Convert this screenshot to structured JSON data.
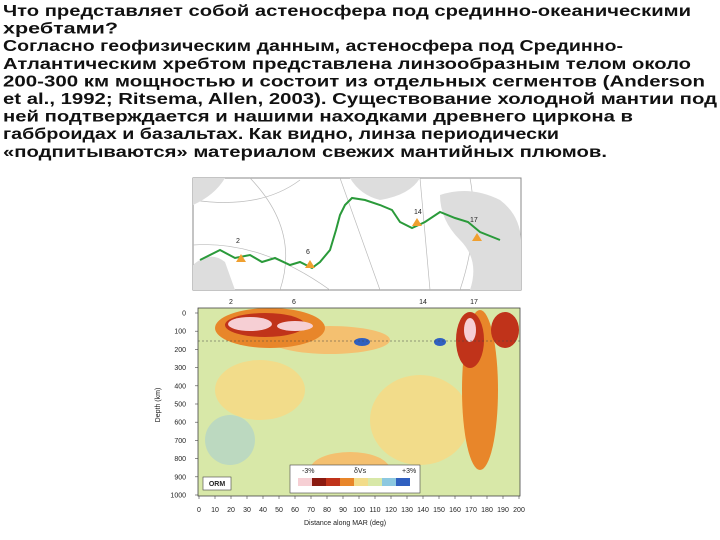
{
  "text": {
    "lines": [
      "Что представляет собой астеносфера под срединно-океаническими",
      "хребтами?",
      "Согласно геофизическим данным, астеносфера под Срединно-",
      "Атлантическим хребтом представлена линзообразным телом около",
      "200-300 км мощностью и состоит из отдельных сегментов (Anderson",
      "et al., 1992; Ritsema, Allen, 2003). Существование холодной мантии под",
      "ней подтверждается и нашими находками древнего циркона в",
      "габброидах и базальтах. Как видно, линза периодически",
      "«подпитываются» материалом свежих мантийных плюмов."
    ]
  },
  "figure": {
    "map": {
      "labels": [
        "2",
        "6",
        "14",
        "17"
      ]
    },
    "section": {
      "top_labels": [
        "2",
        "6",
        "14",
        "17"
      ],
      "y_ticks": [
        "0",
        "100",
        "200",
        "300",
        "400",
        "500",
        "600",
        "700",
        "800",
        "900",
        "1000"
      ],
      "x_ticks": [
        "0",
        "10",
        "20",
        "30",
        "40",
        "50",
        "60",
        "70",
        "80",
        "90",
        "100",
        "110",
        "120",
        "130",
        "140",
        "150",
        "160",
        "170",
        "180",
        "190",
        "200"
      ],
      "x_label": "Distance along MAR (deg)",
      "y_label": "Depth (km)",
      "legend": {
        "min": "-3%",
        "symbol": "δVs",
        "max": "+3%"
      },
      "model": "ORM"
    }
  }
}
